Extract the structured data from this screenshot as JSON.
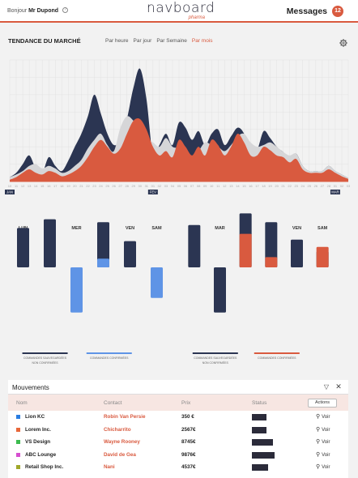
{
  "header": {
    "greeting_prefix": "Bonjour",
    "user_name": "Mr Dupond",
    "help_icon": "help-icon",
    "logo_main": "navboard",
    "logo_sub": "pharma",
    "messages_label": "Messages",
    "messages_count": "12"
  },
  "trend": {
    "title": "TENDANCE DU MARCHÉ",
    "periods": [
      "Par heure",
      "Par jour",
      "Par Semaine",
      "Par mois"
    ],
    "active_period": "Par mois",
    "settings_icon": "gear-icon"
  },
  "colors": {
    "navy": "#2b3552",
    "orange": "#d95a3f",
    "grey": "#d6d6d8",
    "blue": "#5f94e6"
  },
  "chart_data": [
    {
      "type": "area",
      "x": [
        "10",
        "11",
        "12",
        "13",
        "14",
        "15",
        "16",
        "17",
        "18",
        "19",
        "20",
        "21",
        "22",
        "23",
        "24",
        "25",
        "26",
        "27",
        "28",
        "29",
        "30",
        "31",
        "01",
        "02",
        "03",
        "04",
        "05",
        "06",
        "07",
        "08",
        "09",
        "10",
        "11",
        "12",
        "13",
        "14",
        "15",
        "16",
        "17",
        "18",
        "19",
        "20",
        "21",
        "22",
        "23",
        "24",
        "25",
        "26",
        "27",
        "28",
        "01",
        "02",
        "03"
      ],
      "month_labels": [
        {
          "label": "JAN",
          "index": 0
        },
        {
          "label": "FEV",
          "index": 22
        },
        {
          "label": "MAR",
          "index": 50
        }
      ],
      "series": [
        {
          "color": "navy",
          "values": [
            5,
            10,
            20,
            30,
            15,
            10,
            28,
            18,
            12,
            24,
            40,
            55,
            75,
            100,
            78,
            55,
            42,
            48,
            72,
            108,
            130,
            95,
            30,
            42,
            55,
            42,
            68,
            62,
            48,
            58,
            42,
            55,
            60,
            42,
            52,
            62,
            55,
            32,
            36,
            58,
            50,
            40,
            34,
            28,
            32,
            18,
            12,
            12,
            12,
            18,
            12,
            8,
            4
          ]
        },
        {
          "color": "grey",
          "values": [
            5,
            8,
            12,
            18,
            20,
            15,
            18,
            15,
            10,
            12,
            18,
            25,
            38,
            48,
            55,
            42,
            35,
            62,
            75,
            70,
            60,
            50,
            45,
            40,
            50,
            40,
            38,
            30,
            28,
            35,
            45,
            42,
            40,
            35,
            42,
            52,
            55,
            45,
            40,
            42,
            45,
            40,
            34,
            30,
            32,
            18,
            12,
            12,
            12,
            18,
            12,
            8,
            4
          ]
        },
        {
          "color": "orange",
          "values": [
            2,
            5,
            10,
            14,
            10,
            8,
            12,
            10,
            6,
            8,
            12,
            18,
            28,
            40,
            48,
            40,
            32,
            38,
            55,
            70,
            72,
            60,
            40,
            30,
            35,
            28,
            48,
            40,
            30,
            40,
            30,
            48,
            42,
            30,
            40,
            55,
            45,
            30,
            30,
            40,
            36,
            30,
            28,
            22,
            26,
            14,
            10,
            10,
            10,
            14,
            10,
            6,
            3
          ]
        }
      ]
    },
    {
      "type": "bar",
      "categories": [
        "LUN",
        "MAR",
        "MER",
        "JEU",
        "VEN",
        "SAM"
      ],
      "series": [
        {
          "name": "COMMANDES SAUVEGARDÉES NON CONFIRMÉES",
          "color": "navy",
          "values": [
            2.7,
            3.3,
            0,
            3.1,
            1.8,
            0
          ]
        },
        {
          "name": "COMMANDES CONFIRMÉES",
          "color": "blue",
          "values": [
            0,
            0,
            -3.1,
            0.6,
            0,
            -2.1
          ]
        }
      ]
    },
    {
      "type": "bar",
      "categories": [
        "LUN",
        "MAR",
        "MER",
        "JEU",
        "VEN",
        "SAM"
      ],
      "series": [
        {
          "name": "COMMANDES SAUVEGARDÉES NON CONFIRMÉES",
          "color": "navy",
          "values": [
            2.9,
            -3.1,
            3.7,
            3.1,
            1.9,
            1.1
          ]
        },
        {
          "name": "COMMANDES CONFIRMÉES",
          "color": "orange",
          "values": [
            0,
            0,
            2.3,
            0.7,
            0,
            1.4
          ]
        }
      ]
    }
  ],
  "mouvements": {
    "title": "Mouvements",
    "filter_icon": "filter-icon",
    "close_icon": "close-icon",
    "columns": [
      "Nom",
      "Contact",
      "Prix",
      "Status"
    ],
    "actions_label": "Actions",
    "voir_label": "Voir",
    "rows": [
      {
        "nom": "Lion KC",
        "contact": "Robin Van Persie",
        "prix": "350 €",
        "color": "#2a7de1",
        "status": 0.45
      },
      {
        "nom": "Lorem Inc.",
        "contact": "Chicharrito",
        "prix": "2567€",
        "color": "#e8673a",
        "status": 0.45
      },
      {
        "nom": "VS Design",
        "contact": "Wayne Rooney",
        "prix": "8745€",
        "color": "#3dbb4f",
        "status": 0.65
      },
      {
        "nom": "ABC Lounge",
        "contact": "David de Gea",
        "prix": "9876€",
        "color": "#d64fd0",
        "status": 0.7
      },
      {
        "nom": "Retail Shop Inc.",
        "contact": "Nani",
        "prix": "4537€",
        "color": "#a0a82a",
        "status": 0.5
      }
    ]
  }
}
